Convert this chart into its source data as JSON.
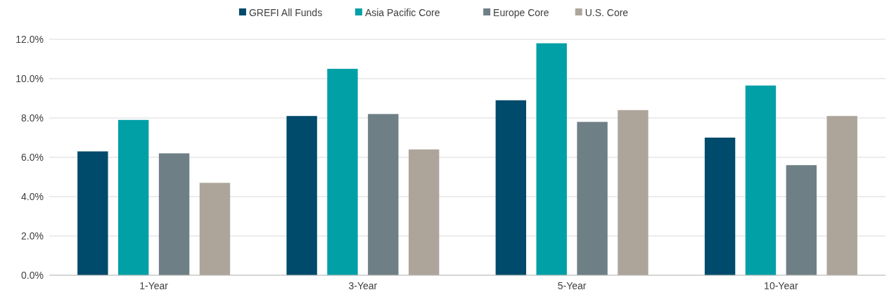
{
  "chart_data": {
    "type": "bar",
    "categories": [
      "1-Year",
      "3-Year",
      "5-Year",
      "10-Year"
    ],
    "series": [
      {
        "name": "GREFI All Funds",
        "color": "#004a6b",
        "values": [
          6.3,
          8.1,
          8.9,
          7.0
        ]
      },
      {
        "name": "Asia Pacific Core",
        "color": "#00a0a6",
        "values": [
          7.9,
          10.5,
          11.8,
          9.65
        ]
      },
      {
        "name": "Europe Core",
        "color": "#6e8085",
        "values": [
          6.2,
          8.2,
          7.8,
          5.6
        ]
      },
      {
        "name": "U.S. Core",
        "color": "#ada59a",
        "values": [
          4.7,
          6.4,
          8.4,
          8.1
        ]
      }
    ],
    "ylim": [
      0,
      12
    ],
    "yticks": [
      {
        "value": 0,
        "label": "0.0%"
      },
      {
        "value": 2,
        "label": "2.0%"
      },
      {
        "value": 4,
        "label": "4.0%"
      },
      {
        "value": 6,
        "label": "6.0%"
      },
      {
        "value": 8,
        "label": "8.0%"
      },
      {
        "value": 10,
        "label": "10.0%"
      },
      {
        "value": 12,
        "label": "12.0%"
      }
    ],
    "grid": "y",
    "legend": "top"
  }
}
